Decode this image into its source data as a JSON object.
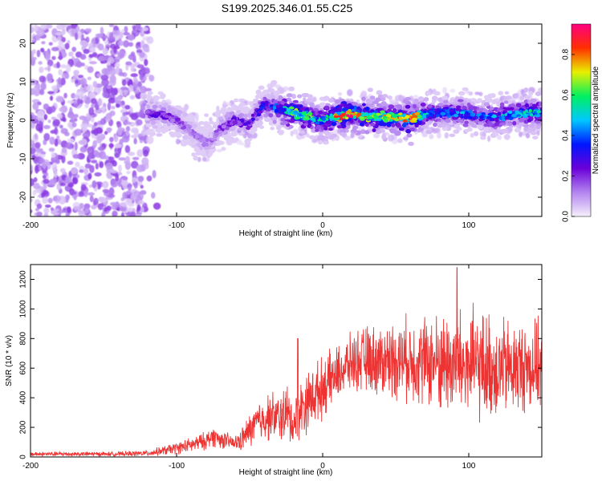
{
  "title": "S199.2025.346.01.55.C25",
  "chart_data": [
    {
      "type": "heatmap",
      "name": "spectrogram",
      "xlabel": "Height of straight line (km)",
      "ylabel": "Frequency (Hz)",
      "xlim": [
        -200,
        150
      ],
      "ylim": [
        -25,
        25
      ],
      "xticks": [
        -200,
        -100,
        0,
        100
      ],
      "xtick_labels": [
        "-200",
        "-100",
        "0",
        "100"
      ],
      "yticks": [
        -20,
        -10,
        0,
        10,
        20
      ],
      "ytick_labels": [
        "-20",
        "-10",
        "0",
        "10",
        "20"
      ],
      "colorbar": {
        "label": "Normalized spectral amplitude",
        "range": [
          0,
          0.95
        ],
        "ticks": [
          0.0,
          0.2,
          0.4,
          0.6,
          0.8
        ],
        "tick_labels": [
          "0.0",
          "0.2",
          "0.4",
          "0.6",
          "0.8"
        ],
        "colors": [
          "#f6f0fb",
          "#b384f0",
          "#6a00d8",
          "#0016ff",
          "#00c8ff",
          "#00f060",
          "#e8f000",
          "#ff3000",
          "#ff0080"
        ]
      },
      "ridge": {
        "x": [
          -120,
          -110,
          -100,
          -90,
          -80,
          -75,
          -70,
          -60,
          -50,
          -45,
          -40,
          -30,
          -20,
          -10,
          0,
          10,
          20,
          30,
          40,
          50,
          60,
          70,
          80,
          90,
          100,
          110,
          120,
          130,
          140,
          150
        ],
        "freq": [
          2,
          1.5,
          0,
          -3,
          -6,
          -5,
          -2,
          0,
          -1,
          2,
          4,
          3,
          2,
          1,
          0,
          1,
          1.5,
          1,
          1,
          0.5,
          0.5,
          1.5,
          2,
          2,
          1.5,
          1,
          1,
          1.5,
          2,
          2
        ],
        "peak_amplitude": [
          0.25,
          0.25,
          0.2,
          0.15,
          0.15,
          0.15,
          0.2,
          0.25,
          0.25,
          0.3,
          0.35,
          0.4,
          0.75,
          0.6,
          0.5,
          0.8,
          0.9,
          0.75,
          0.7,
          0.7,
          0.9,
          0.5,
          0.4,
          0.45,
          0.45,
          0.4,
          0.45,
          0.5,
          0.55,
          0.5
        ]
      },
      "noise_region": {
        "x": [
          -200,
          -120
        ],
        "freq": [
          -25,
          25
        ],
        "amplitude": 0.1
      }
    },
    {
      "type": "line",
      "name": "snr",
      "xlabel": "Height of straight line (km)",
      "ylabel": "SNR (10 * v/v)",
      "xlim": [
        -200,
        150
      ],
      "ylim": [
        0,
        1300
      ],
      "xticks": [
        -200,
        -100,
        0,
        100
      ],
      "xtick_labels": [
        "-200",
        "-100",
        "0",
        "100"
      ],
      "yticks": [
        0,
        200,
        400,
        600,
        800,
        1000,
        1200
      ],
      "ytick_labels": [
        "0",
        "200",
        "400",
        "600",
        "800",
        "1000",
        "1200"
      ],
      "line_color": "#ee3333",
      "series": [
        {
          "name": "SNR",
          "x": [
            -200,
            -180,
            -160,
            -140,
            -120,
            -110,
            -100,
            -90,
            -80,
            -75,
            -70,
            -60,
            -55,
            -50,
            -45,
            -40,
            -35,
            -30,
            -25,
            -20,
            -15,
            -10,
            0,
            10,
            20,
            30,
            40,
            50,
            60,
            70,
            80,
            90,
            100,
            110,
            120,
            130,
            140,
            150
          ],
          "mean": [
            20,
            20,
            20,
            20,
            25,
            40,
            60,
            80,
            110,
            140,
            120,
            90,
            120,
            180,
            230,
            260,
            280,
            260,
            300,
            220,
            330,
            380,
            470,
            560,
            640,
            660,
            650,
            660,
            660,
            650,
            640,
            630,
            620,
            610,
            600,
            600,
            610,
            620
          ],
          "amplitude": [
            15,
            15,
            15,
            15,
            20,
            30,
            40,
            50,
            60,
            70,
            60,
            50,
            80,
            110,
            140,
            150,
            160,
            160,
            200,
            160,
            200,
            200,
            200,
            180,
            190,
            220,
            240,
            260,
            280,
            300,
            330,
            360,
            380,
            360,
            340,
            320,
            300,
            280
          ]
        }
      ],
      "annotations": [
        {
          "x": -17,
          "value": 800,
          "note": "spike"
        },
        {
          "x": 92,
          "value": 1280,
          "note": "max"
        }
      ]
    }
  ]
}
